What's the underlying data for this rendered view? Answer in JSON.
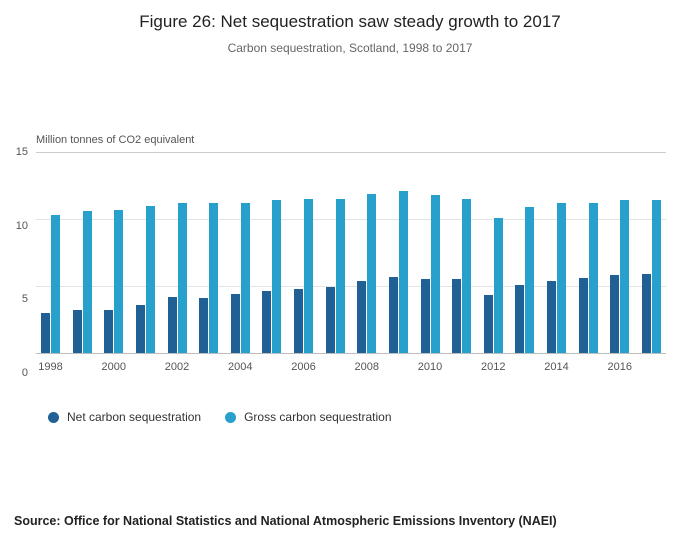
{
  "title": "Figure 26: Net sequestration saw steady growth to 2017",
  "subtitle": "Carbon sequestration, Scotland, 1998 to 2017",
  "axis": {
    "unit_label": "Million tonnes of CO2 equivalent",
    "y_ticks": [
      "15",
      "10",
      "5",
      "0"
    ]
  },
  "legend": [
    {
      "label": "Net carbon sequestration",
      "color": "#206095"
    },
    {
      "label": "Gross carbon sequestration",
      "color": "#27a0cc"
    }
  ],
  "source": "Source: Office for National Statistics and National Atmospheric Emissions Inventory (NAEI)",
  "chart_data": {
    "type": "bar",
    "title": "Figure 26: Net sequestration saw steady growth to 2017",
    "subtitle": "Carbon sequestration, Scotland, 1998 to 2017",
    "categories": [
      "1998",
      "1999",
      "2000",
      "2001",
      "2002",
      "2003",
      "2004",
      "2005",
      "2006",
      "2007",
      "2008",
      "2009",
      "2010",
      "2011",
      "2012",
      "2013",
      "2014",
      "2015",
      "2016",
      "2017"
    ],
    "series": [
      {
        "name": "Net carbon sequestration",
        "color": "#206095",
        "values": [
          3.0,
          3.2,
          3.2,
          3.6,
          4.2,
          4.1,
          4.4,
          4.6,
          4.8,
          4.9,
          5.4,
          5.7,
          5.5,
          5.5,
          4.3,
          5.1,
          5.4,
          5.6,
          5.8,
          5.9
        ]
      },
      {
        "name": "Gross carbon sequestration",
        "color": "#27a0cc",
        "values": [
          10.3,
          10.6,
          10.7,
          11.0,
          11.2,
          11.2,
          11.2,
          11.4,
          11.5,
          11.5,
          11.9,
          12.1,
          11.8,
          11.5,
          10.1,
          10.9,
          11.2,
          11.2,
          11.4,
          11.4
        ]
      }
    ],
    "xlabel": "",
    "ylabel": "Million tonnes of CO2 equivalent",
    "ylim": [
      0,
      15
    ],
    "x_tick_labels": [
      "1998",
      "2000",
      "2002",
      "2004",
      "2006",
      "2008",
      "2010",
      "2012",
      "2014",
      "2016"
    ],
    "grid": true,
    "legend_position": "bottom-left"
  }
}
